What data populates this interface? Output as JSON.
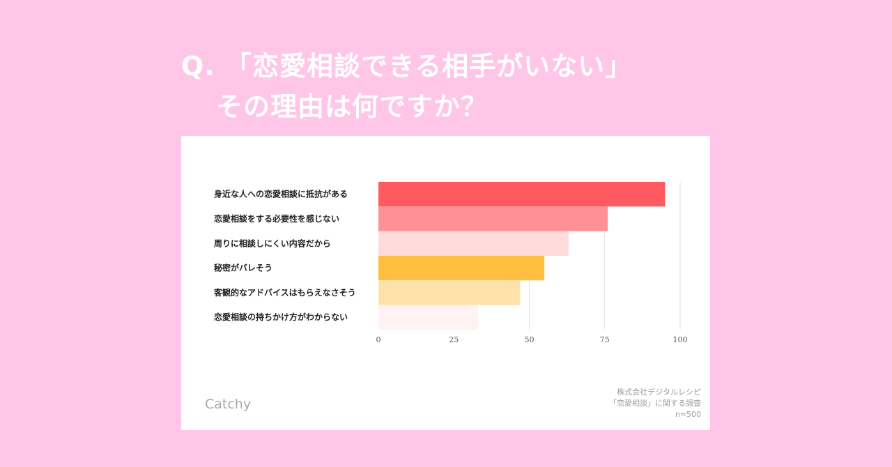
{
  "header": {
    "question_line1": "Q. 「恋愛相談できる相手がいない」",
    "question_line2": "その理由は何ですか？"
  },
  "footer": {
    "brand": "Catchy",
    "source_line1": "株式会社デジタルレシピ",
    "source_line2": "「恋愛相談」に関する調査",
    "source_line3": "n=500"
  },
  "chart_data": {
    "type": "bar",
    "orientation": "horizontal",
    "categories": [
      "身近な人への恋愛相談に抵抗がある",
      "恋愛相談をする必要性を感じない",
      "周りに相談しにくい内容だから",
      "秘密がバレそう",
      "客観的なアドバイスはもらえなさそう",
      "恋愛相談の持ちかけ方がわからない"
    ],
    "values": [
      95,
      76,
      63,
      55,
      47,
      33
    ],
    "colors": [
      "#ff5a5f",
      "#ff9196",
      "#ffdbdc",
      "#ffbe40",
      "#ffe2a8",
      "#fff2f2"
    ],
    "xlim": [
      0,
      100
    ],
    "xticks": [
      0,
      25,
      50,
      75,
      100
    ],
    "grid": true
  }
}
